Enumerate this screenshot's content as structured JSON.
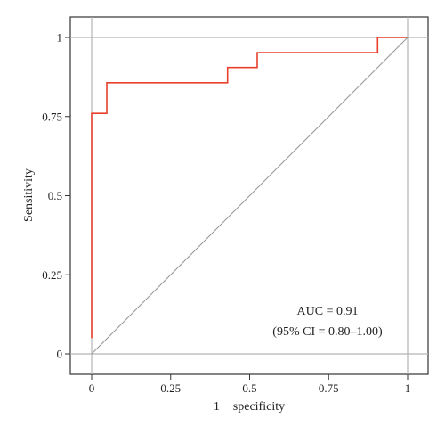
{
  "chart_data": {
    "type": "line",
    "xlabel": "1 − specificity",
    "ylabel": "Sensitivity",
    "xlim": [
      0,
      1
    ],
    "ylim": [
      0,
      1
    ],
    "x_ticks": [
      0,
      0.25,
      0.5,
      0.75,
      1
    ],
    "y_ticks": [
      0,
      0.25,
      0.5,
      0.75,
      1
    ],
    "x_tick_labels": [
      "0",
      "0.25",
      "0.5",
      "0.75",
      "1"
    ],
    "y_tick_labels": [
      "0",
      "0.25",
      "0.5",
      "0.75",
      "1"
    ],
    "grid_lines": {
      "x": [
        0,
        1
      ],
      "y": [
        0,
        1
      ]
    },
    "series": [
      {
        "values": [
          [
            0,
            0.05
          ],
          [
            0,
            0.76
          ],
          [
            0.048,
            0.76
          ],
          [
            0.048,
            0.857
          ],
          [
            0.43,
            0.857
          ],
          [
            0.43,
            0.905
          ],
          [
            0.524,
            0.905
          ],
          [
            0.524,
            0.952
          ],
          [
            0.905,
            0.952
          ],
          [
            0.905,
            1.0
          ],
          [
            1.0,
            1.0
          ]
        ],
        "color": "#e8402c"
      },
      {
        "values": [
          [
            0,
            0
          ],
          [
            1,
            1
          ]
        ],
        "color": "#999999"
      }
    ],
    "annotations": [
      "AUC = 0.91",
      "(95% CI = 0.80–1.00)"
    ],
    "colors": {
      "roc": "#e8402c",
      "reference": "#999999",
      "grid": "#b3b3b3",
      "frame": "#333333"
    }
  }
}
